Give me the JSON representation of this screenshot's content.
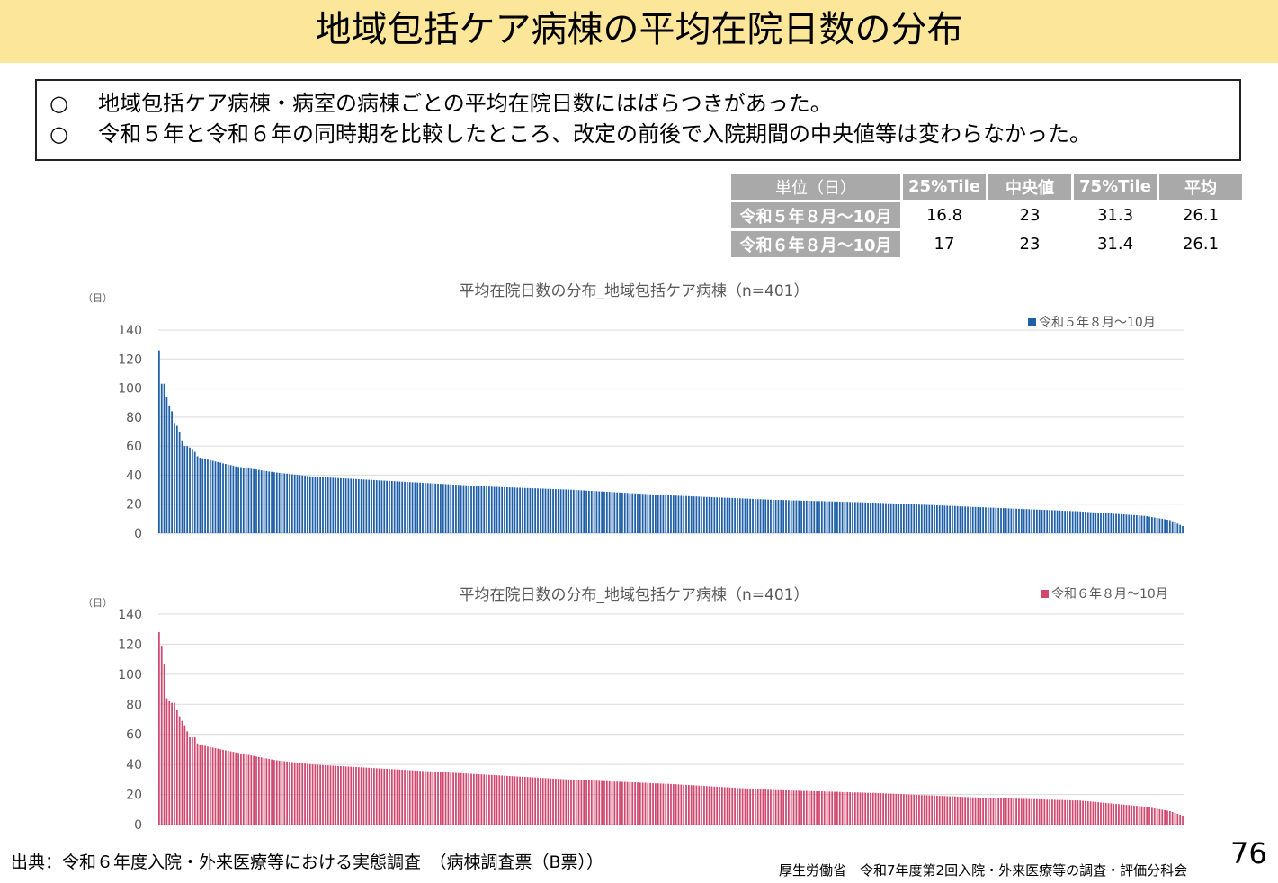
{
  "title": "地域包括ケア病棟の平均在院日数の分布",
  "summary": [
    {
      "mark": "○",
      "text": "地域包括ケア病棟・病室の病棟ごとの平均在院日数にはばらつきがあった。"
    },
    {
      "mark": "○",
      "text": "令和５年と令和６年の同時期を比較したところ、改定の前後で入院期間の中央値等は変わらなかった。"
    }
  ],
  "stats_table": {
    "unit_header": "単位（日）",
    "columns": [
      "25%Tile",
      "中央値",
      "75%Tile",
      "平均"
    ],
    "rows": [
      {
        "label": "令和５年８月～10月",
        "values": [
          "16.8",
          "23",
          "31.3",
          "26.1"
        ]
      },
      {
        "label": "令和６年８月～10月",
        "values": [
          "17",
          "23",
          "31.4",
          "26.1"
        ]
      }
    ]
  },
  "chart_data": [
    {
      "type": "bar",
      "title": "平均在院日数の分布_地域包括ケア病棟（n=401）",
      "y_unit": "（日）",
      "ylim": [
        0,
        140
      ],
      "yticks": [
        0,
        20,
        40,
        60,
        80,
        100,
        120,
        140
      ],
      "grid": true,
      "legend_position": "top-right",
      "n": 401,
      "sorted": "descending",
      "series": [
        {
          "name": "令和５年８月～10月",
          "color": "#1f5fa8"
        }
      ],
      "values_leading": [
        126,
        103,
        103,
        94,
        88,
        84,
        76,
        74,
        70,
        64,
        60,
        60,
        59,
        58,
        56,
        53
      ],
      "distribution_profile": [
        [
          16,
          52
        ],
        [
          30,
          46
        ],
        [
          45,
          42
        ],
        [
          60,
          39
        ],
        [
          80,
          37
        ],
        [
          100,
          35
        ],
        [
          130,
          32
        ],
        [
          160,
          30
        ],
        [
          200,
          26
        ],
        [
          240,
          23
        ],
        [
          280,
          21
        ],
        [
          320,
          18
        ],
        [
          360,
          15
        ],
        [
          385,
          12
        ],
        [
          395,
          9
        ],
        [
          400,
          5
        ]
      ]
    },
    {
      "type": "bar",
      "title": "平均在院日数の分布_地域包括ケア病棟（n=401）",
      "y_unit": "（日）",
      "ylim": [
        0,
        140
      ],
      "yticks": [
        0,
        20,
        40,
        60,
        80,
        100,
        120,
        140
      ],
      "grid": true,
      "legend_position": "top-right",
      "n": 401,
      "sorted": "descending",
      "series": [
        {
          "name": "令和６年８月～10月",
          "color": "#d0486e"
        }
      ],
      "values_leading": [
        128,
        119,
        107,
        84,
        82,
        81,
        81,
        76,
        72,
        69,
        66,
        62,
        58,
        58,
        58,
        54
      ],
      "distribution_profile": [
        [
          16,
          53
        ],
        [
          30,
          48
        ],
        [
          45,
          43
        ],
        [
          60,
          40
        ],
        [
          80,
          38
        ],
        [
          100,
          36
        ],
        [
          130,
          33
        ],
        [
          160,
          30
        ],
        [
          200,
          27
        ],
        [
          240,
          23
        ],
        [
          280,
          21
        ],
        [
          320,
          18
        ],
        [
          360,
          16
        ],
        [
          385,
          12
        ],
        [
          395,
          9
        ],
        [
          400,
          6
        ]
      ]
    }
  ],
  "footer": {
    "source": "出典：令和６年度入院・外来医療等における実態調査　（病棟調査票（B票））",
    "organization": "厚生労働省　令和7年度第2回入院・外来医療等の調査・評価分科会",
    "page_number": "76"
  }
}
